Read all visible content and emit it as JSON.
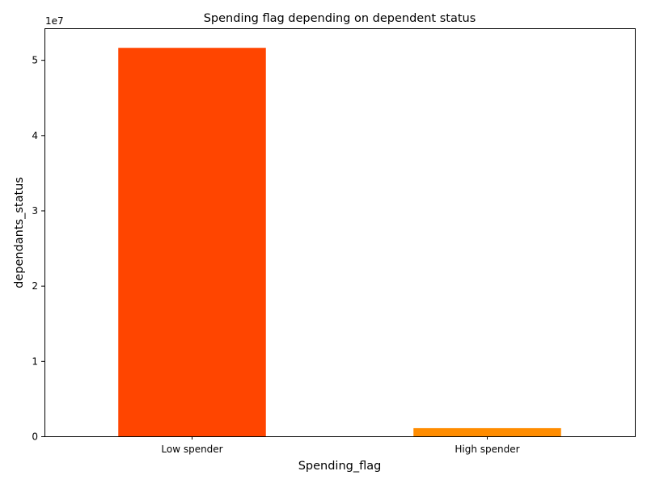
{
  "chart_data": {
    "type": "bar",
    "title": "Spending flag depending on dependent status",
    "xlabel": "Spending_flag",
    "ylabel": "dependants_status",
    "categories": [
      "Low spender",
      "High spender"
    ],
    "values": [
      51600000,
      1080000
    ],
    "colors": [
      "#ff4500",
      "#ff8c00"
    ],
    "ylim": [
      0,
      54200000
    ],
    "yticks": [
      0,
      10000000,
      20000000,
      30000000,
      40000000,
      50000000
    ],
    "ytick_labels": [
      "0",
      "1",
      "2",
      "3",
      "4",
      "5"
    ],
    "offset_label": "1e7",
    "grid": false
  }
}
